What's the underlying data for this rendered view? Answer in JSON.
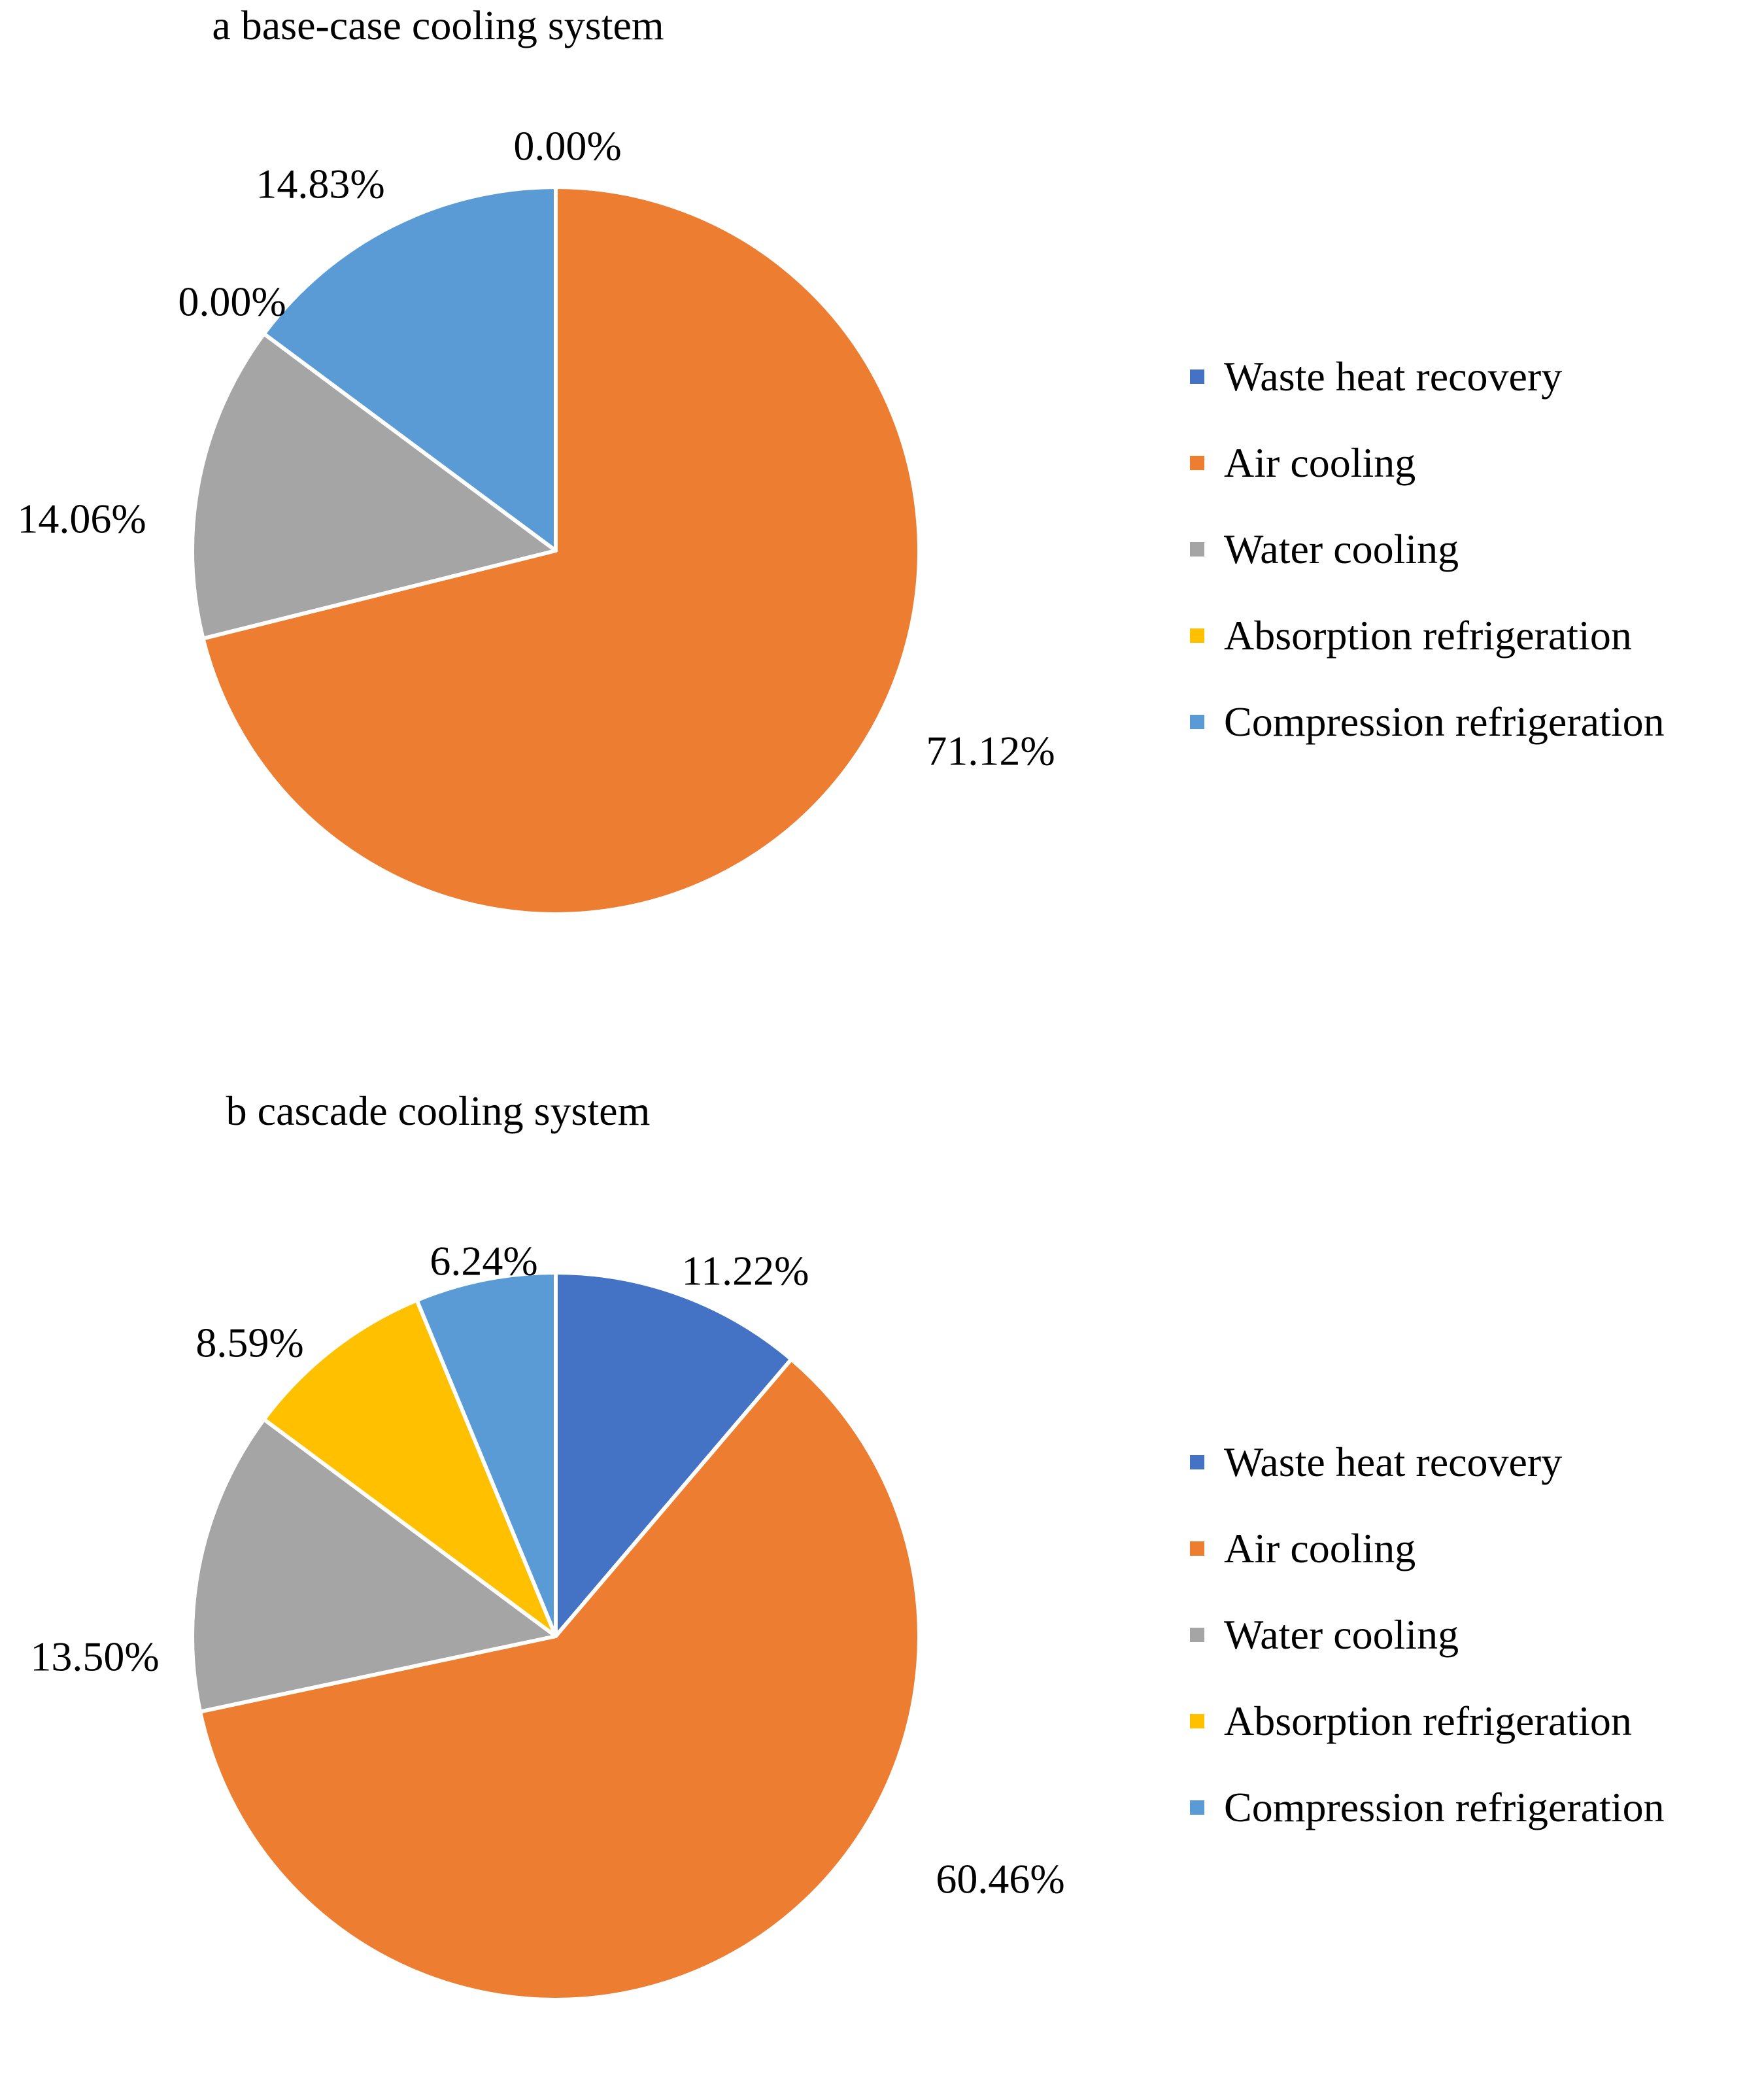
{
  "chart_data": [
    {
      "type": "pie",
      "title": "a base-case cooling system",
      "categories": [
        "Waste heat recovery",
        "Air cooling",
        "Water cooling",
        "Absorption refrigeration",
        "Compression refrigeration"
      ],
      "values": [
        0.0,
        71.12,
        14.06,
        0.0,
        14.83
      ],
      "data_labels": [
        "0.00%",
        "71.12%",
        "14.06%",
        "0.00%",
        "14.83%"
      ],
      "colors": [
        "#4472C4",
        "#ED7D31",
        "#A5A5A5",
        "#FFC000",
        "#5B9BD5"
      ],
      "legend_position": "right"
    },
    {
      "type": "pie",
      "title": "b cascade cooling system",
      "categories": [
        "Waste heat recovery",
        "Air cooling",
        "Water cooling",
        "Absorption refrigeration",
        "Compression refrigeration"
      ],
      "values": [
        11.22,
        60.46,
        13.5,
        8.59,
        6.24
      ],
      "data_labels": [
        "11.22%",
        "60.46%",
        "13.50%",
        "8.59%",
        "6.24%"
      ],
      "colors": [
        "#4472C4",
        "#ED7D31",
        "#A5A5A5",
        "#FFC000",
        "#5B9BD5"
      ],
      "legend_position": "right"
    }
  ]
}
